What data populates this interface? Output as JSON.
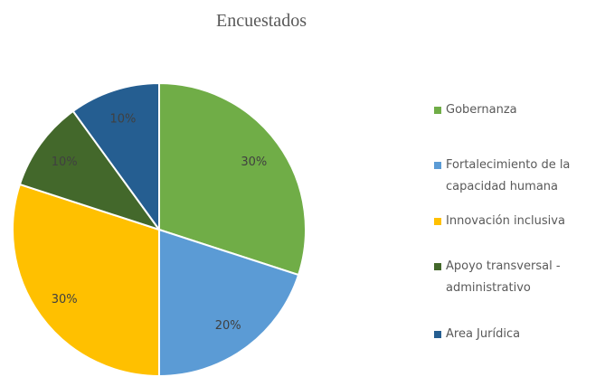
{
  "chart_data": {
    "type": "pie",
    "title": "Encuestados",
    "categories": [
      "Gobernanza",
      "Fortalecimiento de la capacidad humana",
      "Innovación inclusiva",
      "Apoyo transversal - administrativo",
      "Area Jurídica"
    ],
    "values": [
      30,
      20,
      30,
      10,
      10
    ],
    "value_labels": [
      "30%",
      "20%",
      "30%",
      "10%",
      "10%"
    ],
    "colors": [
      "#70ad47",
      "#5b9bd5",
      "#ffc000",
      "#43682b",
      "#255e91"
    ],
    "legend": "right"
  }
}
